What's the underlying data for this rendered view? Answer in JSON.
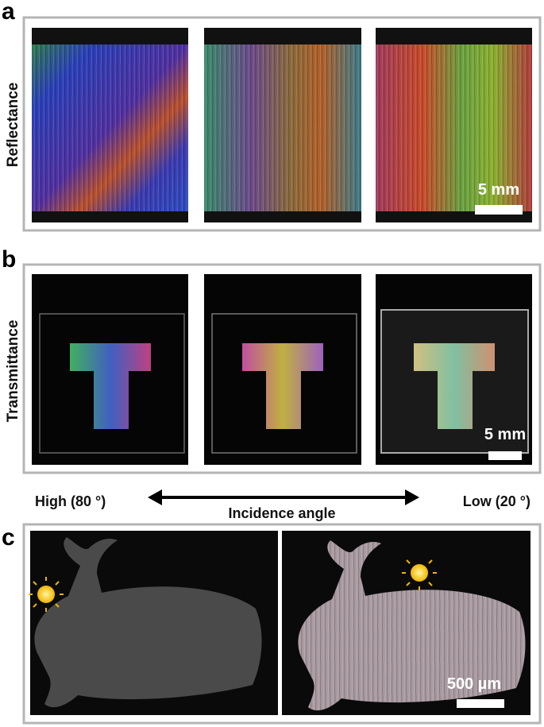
{
  "panels": [
    {
      "label": "a",
      "row_label": "Reflectance",
      "scale_bar": "5 mm"
    },
    {
      "label": "b",
      "row_label": "Transmittance",
      "scale_bar": "5 mm"
    },
    {
      "label": "c",
      "scale_bar": "500 µm"
    }
  ],
  "axis": {
    "left": "High (80 °)",
    "center": "Incidence angle",
    "right": "Low (20 °)"
  }
}
